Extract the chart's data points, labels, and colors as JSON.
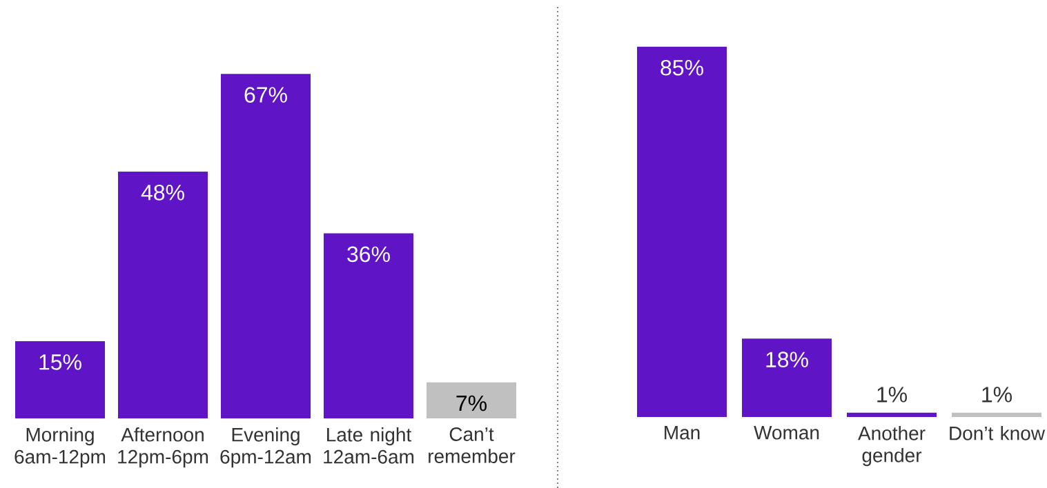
{
  "chart_data": [
    {
      "type": "bar",
      "categories": [
        "Morning 6am-12pm",
        "Afternoon 12pm-6pm",
        "Evening 6pm-12am",
        "Late night 12am-6am",
        "Can’t remember"
      ],
      "values": [
        15,
        48,
        67,
        36,
        7
      ],
      "colors": [
        "#5f14c5",
        "#5f14c5",
        "#5f14c5",
        "#5f14c5",
        "#c0c0c0"
      ],
      "value_labels": [
        "15%",
        "48%",
        "67%",
        "36%",
        "7%"
      ]
    },
    {
      "type": "bar",
      "categories": [
        "Man",
        "Woman",
        "Another gender",
        "Don’t know"
      ],
      "values": [
        85,
        18,
        1,
        1
      ],
      "colors": [
        "#5f14c5",
        "#5f14c5",
        "#5f14c5",
        "#c0c0c0"
      ],
      "value_labels": [
        "85%",
        "18%",
        "1%",
        "1%"
      ]
    }
  ]
}
